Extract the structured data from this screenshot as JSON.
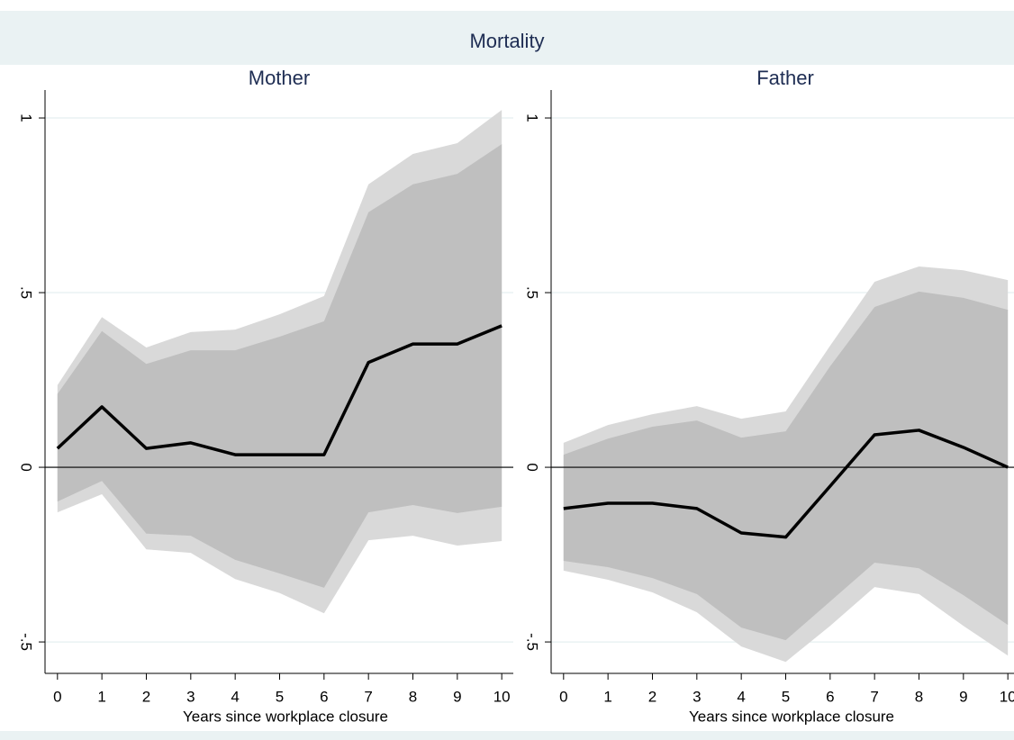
{
  "title": "Mortality",
  "chart_data": [
    {
      "type": "line",
      "title": "Mother",
      "xlabel": "Years since workplace closure",
      "x": [
        0,
        1,
        2,
        3,
        4,
        5,
        6,
        7,
        8,
        9,
        10
      ],
      "xlim": [
        -0.28,
        10.26
      ],
      "xticks": [
        0,
        1,
        2,
        3,
        4,
        5,
        6,
        7,
        8,
        9,
        10
      ],
      "ylim": [
        -0.59,
        1.08
      ],
      "yticks": [
        {
          "value": -0.5,
          "label": "-.5"
        },
        0,
        {
          "value": 0.5,
          "label": ".5"
        },
        1
      ],
      "yline": 0,
      "grid": true,
      "bands": [
        {
          "color": "#d9d9d9",
          "lower": [
            -0.129,
            -0.077,
            -0.235,
            -0.245,
            -0.32,
            -0.36,
            -0.418,
            -0.209,
            -0.196,
            -0.224,
            -0.211
          ],
          "upper": [
            0.235,
            0.43,
            0.343,
            0.387,
            0.394,
            0.438,
            0.49,
            0.81,
            0.897,
            0.928,
            1.023
          ]
        },
        {
          "color": "#bfbfbf",
          "lower": [
            -0.098,
            -0.039,
            -0.19,
            -0.196,
            -0.265,
            -0.304,
            -0.345,
            -0.129,
            -0.108,
            -0.131,
            -0.113
          ],
          "upper": [
            0.21,
            0.39,
            0.296,
            0.335,
            0.335,
            0.374,
            0.418,
            0.73,
            0.81,
            0.84,
            0.925
          ]
        }
      ],
      "series": [
        {
          "color": "#000000",
          "values": [
            0.054,
            0.173,
            0.054,
            0.07,
            0.036,
            0.036,
            0.036,
            0.3,
            0.353,
            0.353,
            0.405
          ]
        }
      ]
    },
    {
      "type": "line",
      "title": "Father",
      "xlabel": "Years since workplace closure",
      "x": [
        0,
        1,
        2,
        3,
        4,
        5,
        6,
        7,
        8,
        9,
        10
      ],
      "xlim": [
        -0.28,
        10.26
      ],
      "xticks": [
        0,
        1,
        2,
        3,
        4,
        5,
        6,
        7,
        8,
        9,
        10
      ],
      "ylim": [
        -0.59,
        1.08
      ],
      "yticks": [
        {
          "value": -0.5,
          "label": "-.5"
        },
        0,
        {
          "value": 0.5,
          "label": ".5"
        },
        1
      ],
      "yline": 0,
      "grid": true,
      "bands": [
        {
          "color": "#d9d9d9",
          "lower": [
            -0.296,
            -0.322,
            -0.358,
            -0.415,
            -0.513,
            -0.557,
            -0.454,
            -0.343,
            -0.363,
            -0.454,
            -0.539
          ],
          "upper": [
            0.07,
            0.121,
            0.152,
            0.175,
            0.139,
            0.16,
            0.348,
            0.531,
            0.575,
            0.564,
            0.536
          ]
        },
        {
          "color": "#bfbfbf",
          "lower": [
            -0.268,
            -0.286,
            -0.317,
            -0.363,
            -0.459,
            -0.495,
            -0.384,
            -0.273,
            -0.289,
            -0.366,
            -0.451
          ],
          "upper": [
            0.036,
            0.082,
            0.116,
            0.134,
            0.085,
            0.103,
            0.289,
            0.459,
            0.503,
            0.485,
            0.451
          ]
        }
      ],
      "series": [
        {
          "color": "#000000",
          "values": [
            -0.118,
            -0.103,
            -0.103,
            -0.118,
            -0.188,
            -0.2,
            -0.054,
            0.093,
            0.106,
            0.057,
            0
          ]
        }
      ]
    }
  ]
}
